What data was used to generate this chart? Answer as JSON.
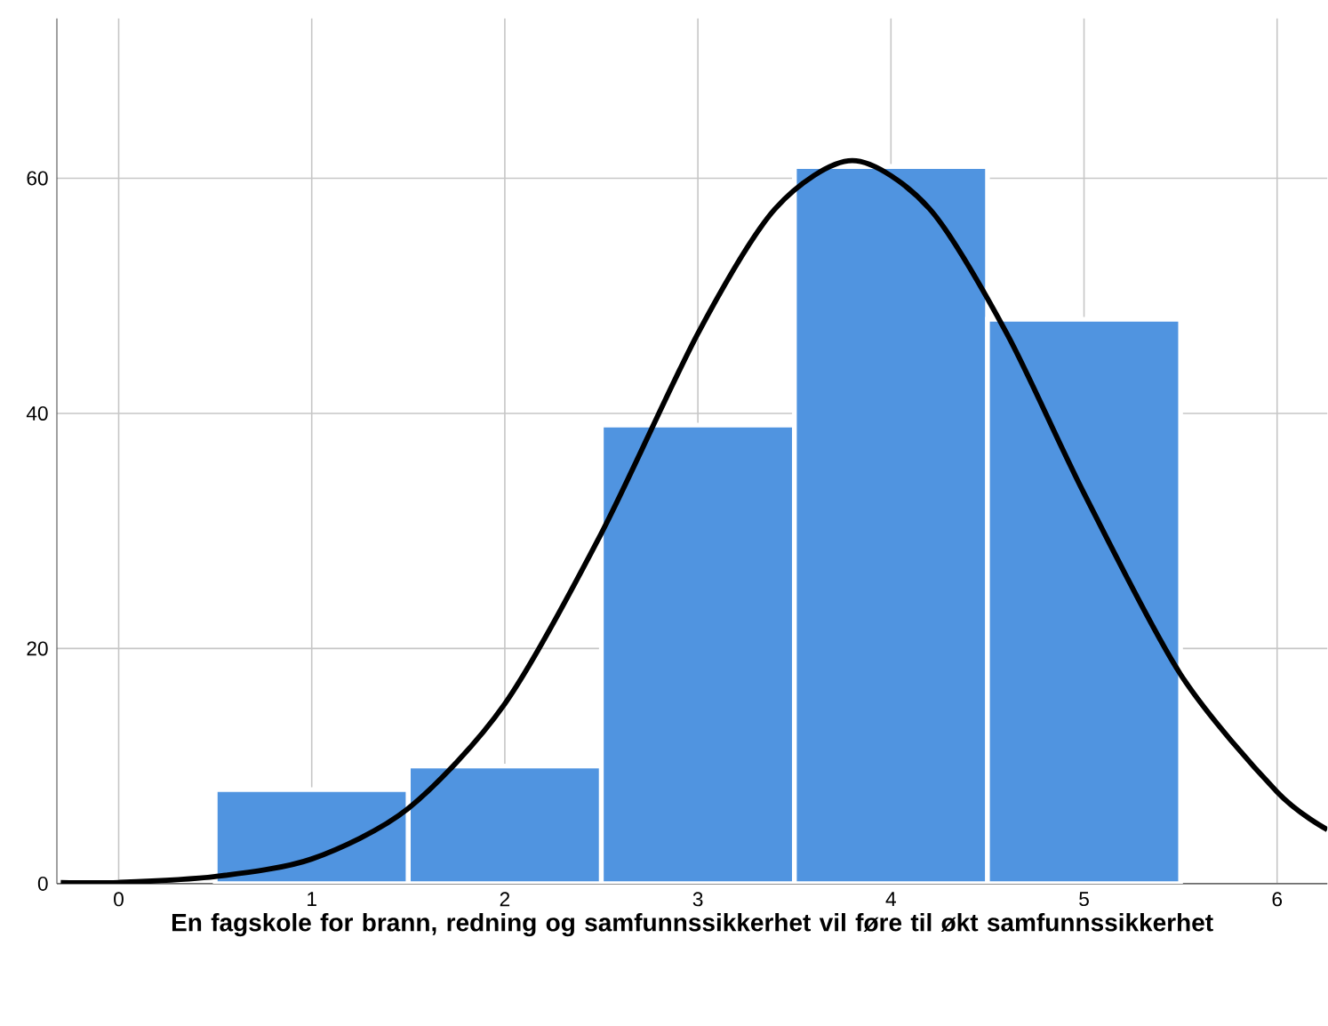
{
  "chart_data": {
    "type": "histogram",
    "xlabel": "En fagskole for brann, redning og samfunnssikkerhet vil føre til økt samfunnssikkerhet",
    "bins": [
      0.5,
      1.5,
      2.5,
      3.5,
      4.5,
      5.5
    ],
    "values": [
      8,
      10,
      39,
      61,
      48
    ],
    "color": "#5094e0",
    "series": [
      {
        "type": "line",
        "color": "#000000",
        "x": [
          -0.3,
          0,
          0.5,
          1,
          1.5,
          2,
          2.5,
          3,
          3.4,
          3.8,
          4.2,
          4.6,
          5,
          5.5,
          6,
          6.26
        ],
        "values": [
          0.1,
          0.1,
          0.6,
          2.1,
          6.4,
          15.3,
          29.8,
          46.8,
          57.4,
          61.5,
          57.4,
          46.8,
          33.2,
          17.8,
          7.8,
          4.6
        ]
      }
    ],
    "xlim": [
      -0.32,
      6.26
    ],
    "ylim": [
      0,
      73.6
    ],
    "xticks": [
      0,
      1,
      2,
      3,
      4,
      5,
      6
    ],
    "yticks": [
      0,
      20,
      40,
      60
    ],
    "grid": true
  }
}
